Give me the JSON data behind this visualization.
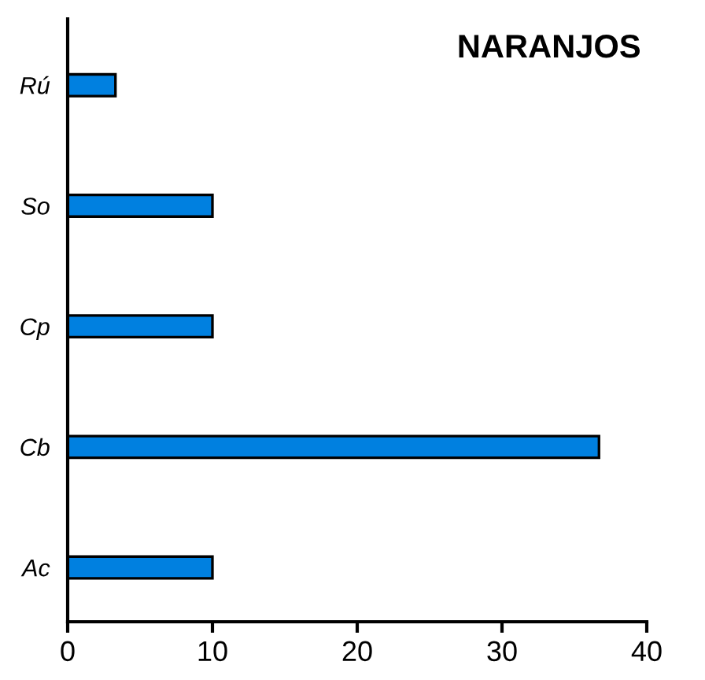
{
  "chart_data": {
    "type": "bar",
    "orientation": "horizontal",
    "title": "NARANJOS",
    "categories": [
      "Rú",
      "So",
      "Cp",
      "Cb",
      "Ac"
    ],
    "values": [
      3.3,
      10,
      10,
      36.7,
      10
    ],
    "color": "#0080e0",
    "xlim": [
      0,
      40
    ],
    "xticks": [
      0,
      10,
      20,
      30,
      40
    ],
    "grid": false
  }
}
